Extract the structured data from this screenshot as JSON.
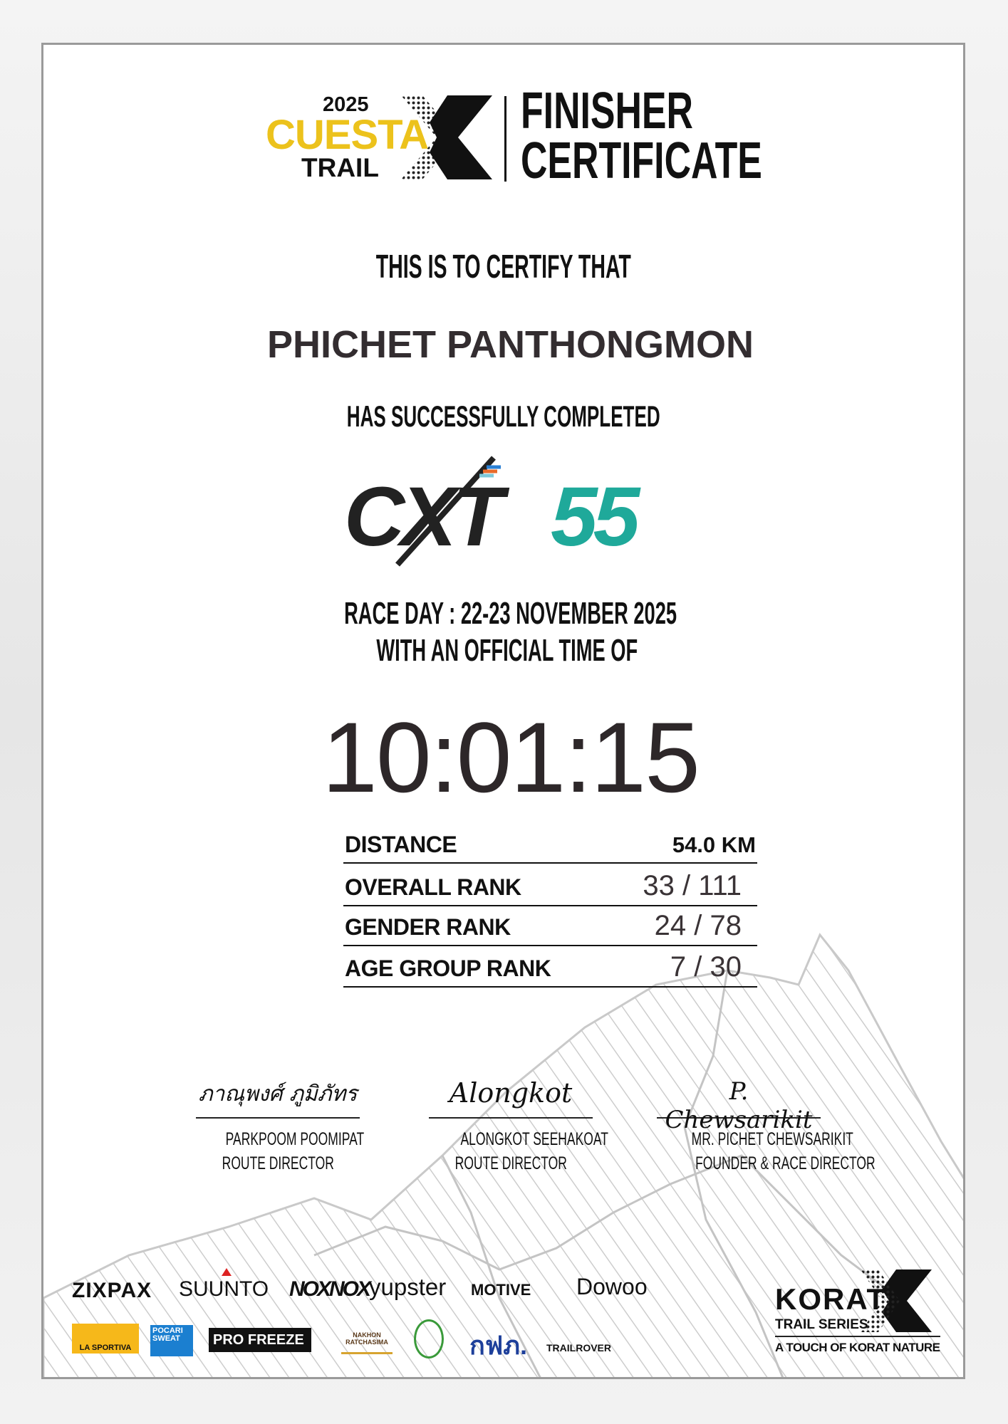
{
  "header": {
    "logo_year": "2025",
    "logo_word1": "CUESTA",
    "logo_word2": "TRAIL",
    "title_line1": "FINISHER",
    "title_line2": "CERTIFICATE"
  },
  "certify_text": "THIS IS TO CERTIFY THAT",
  "runner_name": "PHICHET PANTHONGMON",
  "completed_text": "HAS SUCCESSFULLY COMPLETED",
  "race_logo": {
    "prefix": "CXT",
    "number": "55"
  },
  "race_day": "RACE DAY : 22-23 NOVEMBER 2025",
  "official_time_text": "WITH AN OFFICIAL TIME OF",
  "official_time": "10:01:15",
  "stats": [
    {
      "label": "DISTANCE",
      "value": "54.0 KM"
    },
    {
      "label": "OVERALL RANK",
      "value": "33 / 111"
    },
    {
      "label": "GENDER RANK",
      "value": "24 / 78"
    },
    {
      "label": "AGE GROUP RANK",
      "value": "7 / 30"
    }
  ],
  "signatures": [
    {
      "signature": "ภาณุพงศ์ ภูมิภัทร",
      "name": "PARKPOOM POOMIPAT",
      "role": "ROUTE DIRECTOR"
    },
    {
      "signature": "Alongkot",
      "name": "ALONGKOT SEEHAKOAT",
      "role": "ROUTE DIRECTOR"
    },
    {
      "signature": "P. Chewsarikit",
      "name": "MR. PICHET CHEWSARIKIT",
      "role": "FOUNDER & RACE DIRECTOR"
    }
  ],
  "sponsors_row1": [
    "ZIXPAX",
    "SUUNTO",
    "NOXNOX",
    "yupster",
    "MOTIVE",
    "Dowoo"
  ],
  "sponsors_row2": [
    "LA SPORTIVA",
    "POCARI SWEAT",
    "PRO FREEZE",
    "NAKHON RATCHASIMA",
    "กฟภ.",
    "TRAILROVER"
  ],
  "korat_logo": {
    "word": "KORAT",
    "sub": "TRAIL SERIES",
    "tagline": "A TOUCH OF KORAT NATURE"
  },
  "colors": {
    "yellow": "#ecc21c",
    "teal": "#1fa99a",
    "text": "#111111",
    "value_gray": "#3a3336"
  }
}
